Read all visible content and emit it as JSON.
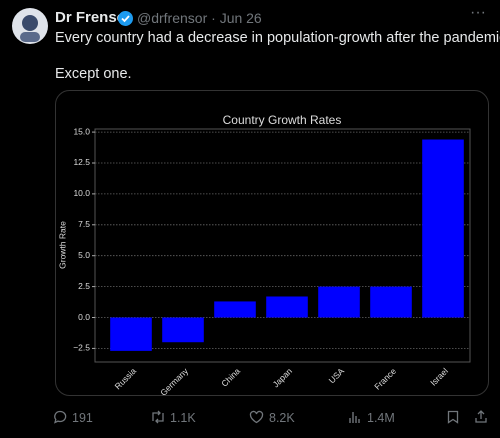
{
  "tweet": {
    "name": "Dr Frensor",
    "handle": "@drfrensor",
    "date": "Jun 26",
    "text": "Every country had a decrease in population-growth after the pandemic.",
    "text2": "Except one.",
    "stats": {
      "replies": "191",
      "reposts": "1.1K",
      "likes": "8.2K",
      "views": "1.4M"
    }
  },
  "chart_data": {
    "type": "bar",
    "title": "Country Growth Rates",
    "y_label": "Growth Rate",
    "categories": [
      "Russia",
      "Germany",
      "China",
      "Japan",
      "USA",
      "France",
      "Israel"
    ],
    "values": [
      -2.7,
      -2.0,
      1.3,
      1.7,
      2.5,
      2.5,
      14.4
    ],
    "color": "#0000ff",
    "ylim": [
      -3.6,
      15.25
    ],
    "yticks": [
      {
        "value": -2.5,
        "label": "−2.5"
      },
      {
        "value": 0,
        "label": "0.0"
      },
      2.5,
      {
        "value": 5,
        "label": "5.0"
      },
      7.5,
      {
        "value": 10,
        "label": "10.0"
      },
      12.5,
      {
        "value": 15,
        "label": "15.0"
      }
    ],
    "grid": true
  }
}
